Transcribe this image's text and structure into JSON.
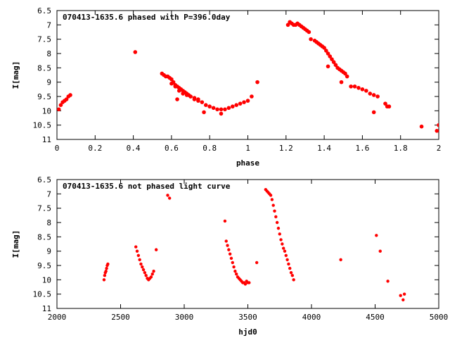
{
  "chart_data": [
    {
      "type": "scatter",
      "title": "070413-1635.6 phased with P=396.0day",
      "xlabel": "phase",
      "ylabel": "I[mag]",
      "xlim": [
        0,
        2
      ],
      "ylim": [
        11,
        6.5
      ],
      "y_inverted": true,
      "xticks": [
        "0",
        "0.2",
        "0.4",
        "0.6",
        "0.8",
        "1",
        "1.2",
        "1.4",
        "1.6",
        "1.8",
        "2"
      ],
      "yticks": [
        "6.5",
        "7",
        "7.5",
        "8",
        "8.5",
        "9",
        "9.5",
        "10",
        "10.5",
        "11"
      ],
      "grid": false,
      "color": "#ff0000",
      "series": [
        {
          "x": [
            0.01,
            0.02,
            0.03,
            0.04,
            0.05,
            0.06,
            0.07,
            0.41,
            0.55,
            0.56,
            0.57,
            0.58,
            0.59,
            0.6,
            0.61,
            0.62,
            0.63,
            0.64,
            0.65,
            0.66,
            0.67,
            0.68,
            0.69,
            0.7,
            0.72,
            0.74,
            0.76,
            0.78,
            0.8,
            0.82,
            0.84,
            0.86,
            0.88,
            0.9,
            0.92,
            0.94,
            0.96,
            0.98,
            1.0,
            1.02,
            1.05,
            0.6,
            0.62,
            0.64,
            0.66,
            0.68,
            0.7,
            0.72,
            0.74,
            0.63,
            0.86,
            0.77,
            1.21,
            1.22,
            1.23,
            1.24,
            1.25,
            1.26,
            1.27,
            1.28,
            1.29,
            1.3,
            1.31,
            1.32,
            1.33,
            1.35,
            1.36,
            1.37,
            1.38,
            1.39,
            1.4,
            1.41,
            1.42,
            1.43,
            1.44,
            1.45,
            1.46,
            1.47,
            1.48,
            1.49,
            1.5,
            1.51,
            1.52,
            1.54,
            1.56,
            1.58,
            1.6,
            1.62,
            1.64,
            1.66,
            1.68,
            1.42,
            1.49,
            1.66,
            1.72,
            1.73,
            1.74,
            1.91,
            1.99,
            2.0
          ],
          "y": [
            9.95,
            9.8,
            9.7,
            9.65,
            9.6,
            9.5,
            9.45,
            7.95,
            8.7,
            8.75,
            8.8,
            8.8,
            8.85,
            8.9,
            9.0,
            9.1,
            9.15,
            9.2,
            9.25,
            9.3,
            9.35,
            9.4,
            9.45,
            9.5,
            9.6,
            9.65,
            9.7,
            9.8,
            9.85,
            9.9,
            9.95,
            9.95,
            9.95,
            9.9,
            9.85,
            9.8,
            9.75,
            9.7,
            9.65,
            9.5,
            9.0,
            9.05,
            9.15,
            9.3,
            9.4,
            9.45,
            9.5,
            9.55,
            9.6,
            9.6,
            10.1,
            10.05,
            7.0,
            6.9,
            6.95,
            7.0,
            7.0,
            6.95,
            7.0,
            7.05,
            7.1,
            7.15,
            7.2,
            7.25,
            7.5,
            7.55,
            7.6,
            7.65,
            7.7,
            7.75,
            7.8,
            7.9,
            8.0,
            8.1,
            8.2,
            8.3,
            8.4,
            8.5,
            8.55,
            8.6,
            8.65,
            8.7,
            8.8,
            9.15,
            9.15,
            9.2,
            9.25,
            9.3,
            9.4,
            9.45,
            9.5,
            8.45,
            9.0,
            10.05,
            9.75,
            9.85,
            9.85,
            10.55,
            10.7,
            10.5
          ]
        }
      ]
    },
    {
      "type": "scatter",
      "title": "070413-1635.6 not phased light curve",
      "xlabel": "hjd0",
      "ylabel": "I[mag]",
      "xlim": [
        2000,
        5000
      ],
      "ylim": [
        11,
        6.5
      ],
      "y_inverted": true,
      "xticks": [
        "2000",
        "2500",
        "3000",
        "3500",
        "4000",
        "4500",
        "5000"
      ],
      "yticks": [
        "6.5",
        "7",
        "7.5",
        "8",
        "8.5",
        "9",
        "9.5",
        "10",
        "10.5",
        "11"
      ],
      "grid": false,
      "color": "#ff0000",
      "series": [
        {
          "x": [
            2370,
            2375,
            2380,
            2385,
            2390,
            2395,
            2400,
            2620,
            2630,
            2640,
            2650,
            2660,
            2670,
            2680,
            2690,
            2700,
            2710,
            2720,
            2730,
            2740,
            2750,
            2760,
            2780,
            2870,
            2885,
            3320,
            3330,
            3340,
            3350,
            3360,
            3370,
            3380,
            3390,
            3400,
            3410,
            3420,
            3430,
            3440,
            3450,
            3460,
            3470,
            3480,
            3490,
            3500,
            3510,
            3570,
            3640,
            3650,
            3660,
            3670,
            3680,
            3690,
            3700,
            3710,
            3720,
            3730,
            3740,
            3750,
            3760,
            3770,
            3780,
            3790,
            3800,
            3810,
            3820,
            3830,
            3840,
            3850,
            3860,
            4230,
            4510,
            4540,
            4600,
            4700,
            4720,
            4730
          ],
          "y": [
            10.0,
            9.85,
            9.75,
            9.7,
            9.6,
            9.5,
            9.45,
            8.85,
            9.0,
            9.15,
            9.3,
            9.45,
            9.55,
            9.65,
            9.75,
            9.85,
            9.95,
            10.0,
            9.95,
            9.9,
            9.8,
            9.7,
            8.95,
            7.05,
            7.15,
            7.95,
            8.65,
            8.8,
            8.95,
            9.1,
            9.25,
            9.4,
            9.55,
            9.7,
            9.8,
            9.9,
            9.95,
            10.0,
            10.05,
            10.1,
            10.1,
            10.15,
            10.05,
            10.1,
            10.1,
            9.4,
            6.85,
            6.9,
            6.95,
            7.0,
            7.05,
            7.2,
            7.4,
            7.6,
            7.8,
            8.0,
            8.2,
            8.4,
            8.6,
            8.75,
            8.9,
            9.0,
            9.15,
            9.3,
            9.45,
            9.6,
            9.75,
            9.85,
            10.0,
            9.3,
            8.45,
            9.0,
            10.05,
            10.55,
            10.7,
            10.5
          ]
        }
      ]
    }
  ]
}
